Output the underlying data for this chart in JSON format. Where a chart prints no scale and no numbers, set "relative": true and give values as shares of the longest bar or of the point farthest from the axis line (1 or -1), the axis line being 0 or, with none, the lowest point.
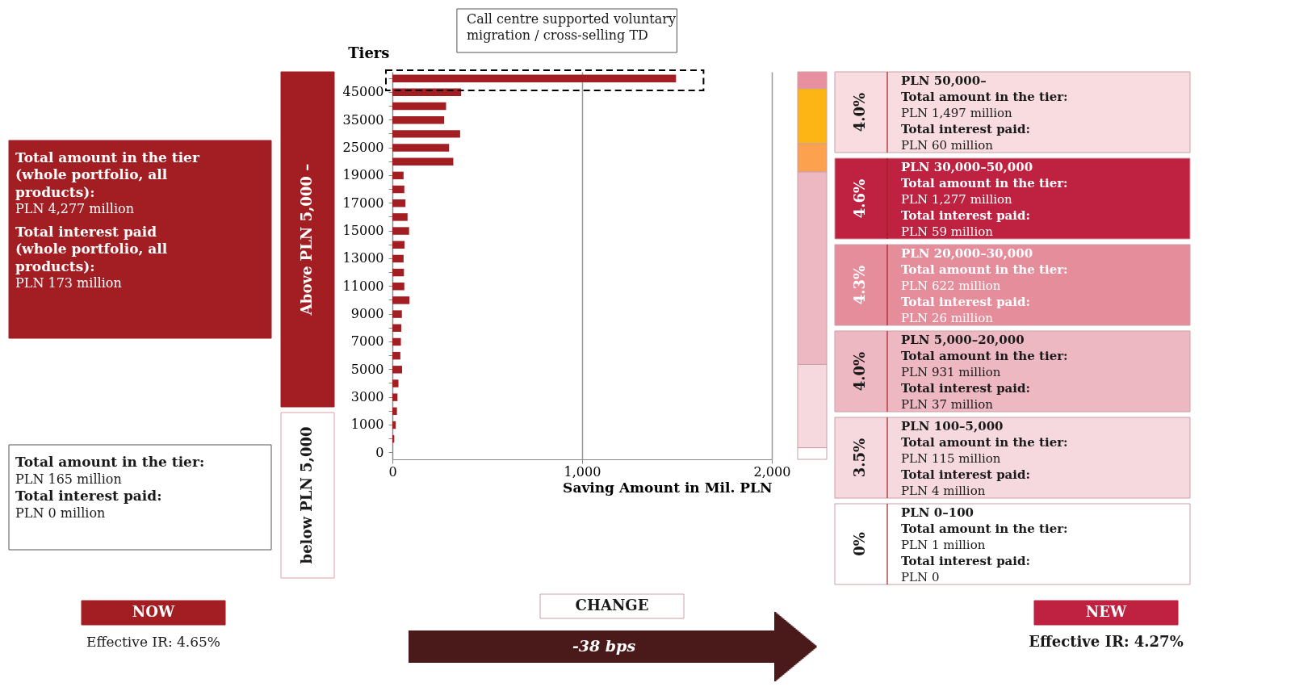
{
  "chart_data": [
    {
      "type": "other",
      "subtitle": "Above PLN 5,000 –",
      "color": "#a21e22",
      "annotations": [
        "Total amount in the tier (whole portfolio, all products):",
        "PLN 4,277 million",
        "Total interest paid (whole portfolio, all products):",
        "PLN 173 million"
      ]
    },
    {
      "type": "other",
      "subtitle": "below PLN 5,000",
      "color": "#ffffff",
      "annotations": [
        "Total amount in the tier:",
        "PLN 165 million",
        "Total interest paid:",
        "PLN 0 million"
      ]
    },
    {
      "type": "bar",
      "orientation": "horizontal",
      "ylabel": "Tiers",
      "xlabel": "Saving Amount in Mil. PLN",
      "color": "#a21e22",
      "grid": "x",
      "categories": [
        null,
        "45000",
        null,
        "35000",
        null,
        "25000",
        null,
        "19000",
        null,
        "17000",
        null,
        "15000",
        null,
        "13000",
        null,
        "11000",
        null,
        "9000",
        null,
        "7000",
        null,
        "5000",
        null,
        "3000",
        null,
        "1000",
        null,
        "0"
      ],
      "values": [
        1495,
        362,
        283,
        273,
        357,
        299,
        321,
        59,
        63,
        69,
        80,
        88,
        64,
        59,
        61,
        63,
        90,
        50,
        47,
        45,
        42,
        51,
        32,
        27,
        24,
        18,
        10,
        0
      ],
      "xlim": [
        0,
        2000
      ],
      "xticks": [
        0,
        {
          "value": 1000,
          "label": "1,000"
        },
        {
          "value": 2000,
          "label": "2,000"
        }
      ],
      "annotations": [
        "Call centre supported voluntary migration / cross-selling TD"
      ]
    },
    {
      "type": "bar",
      "stacked": true,
      "relative": true,
      "categories": [
        null
      ],
      "series": [
        {
          "color": "#ffffff",
          "values": [
            0.03
          ]
        },
        {
          "color": "#f6d9de",
          "values": [
            0.215
          ]
        },
        {
          "color": "#eeb8c3",
          "values": [
            0.497
          ]
        },
        {
          "color": "#fca24f",
          "values": [
            0.073
          ]
        },
        {
          "color": "#fdb515",
          "values": [
            0.142
          ]
        },
        {
          "color": "#e8909f",
          "values": [
            0.043
          ]
        }
      ]
    },
    {
      "type": "other",
      "title": "PLN 50,000–",
      "subtitle": "4.0%",
      "color": "#f8dce0",
      "annotations": [
        "Total amount in the tier:",
        "PLN 1,497 million",
        "Total interest paid:",
        "PLN 60 million"
      ]
    },
    {
      "type": "other",
      "title": "PLN 30,000–50,000",
      "subtitle": "4.6%",
      "color": "#bf2141",
      "annotations": [
        "Total amount in the tier:",
        "PLN 1,277 million",
        "Total interest paid:",
        "PLN 59 million"
      ]
    },
    {
      "type": "other",
      "title": "PLN 20,000–30,000",
      "subtitle": "4.3%",
      "color": "#e58d9b",
      "annotations": [
        "Total amount in the tier:",
        "PLN 622 million",
        "Total interest paid:",
        "PLN 26 million"
      ]
    },
    {
      "type": "other",
      "title": "PLN 5,000–20,000",
      "subtitle": "4.0%",
      "color": "#eeb8c3",
      "annotations": [
        "Total amount in the tier:",
        "PLN 931 million",
        "Total interest paid:",
        "PLN 37 million"
      ]
    },
    {
      "type": "other",
      "title": "PLN 100–5,000",
      "subtitle": "3.5%",
      "color": "#f6d9de",
      "annotations": [
        "Total amount in the tier:",
        "PLN 115 million",
        "Total interest paid:",
        "PLN 4 million"
      ]
    },
    {
      "type": "other",
      "title": "PLN 0–100",
      "subtitle": "0%",
      "color": "#ffffff",
      "annotations": [
        "Total amount in the tier:",
        "PLN 1 million",
        "Total interest paid:",
        "PLN 0"
      ]
    },
    {
      "type": "other",
      "colors": [
        "#a21e22",
        "#ffffff",
        "#4a1a1a",
        "#bf2141"
      ],
      "annotations": [
        "NOW",
        "Effective IR: 4.65%",
        "CHANGE",
        "-38 bps",
        "NEW",
        "Effective IR: 4.27%"
      ]
    }
  ]
}
